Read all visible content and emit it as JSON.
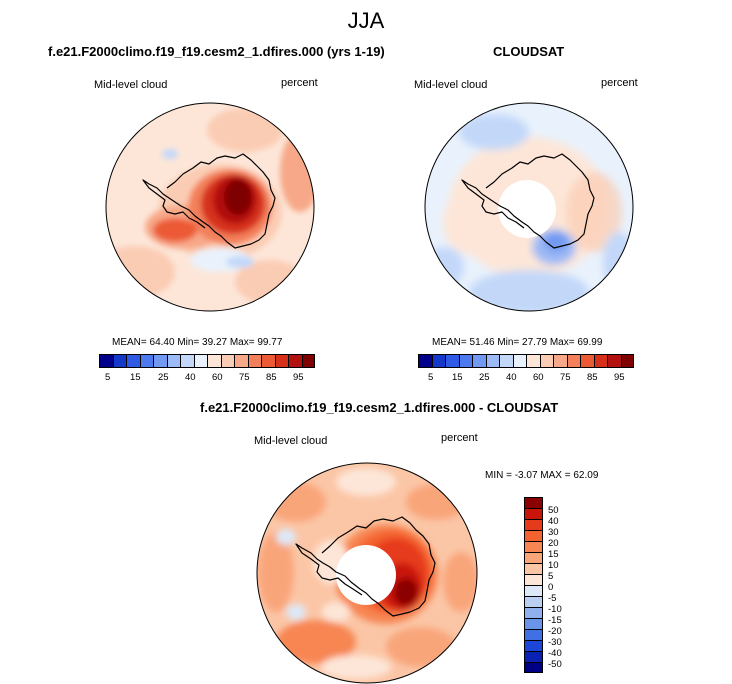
{
  "figure": {
    "title": "JJA",
    "panels": [
      {
        "id": "model",
        "title": "f.e21.F2000climo.f19_f19.cesm2_1.dfires.000 (yrs 1-19)",
        "left_label": "Mid-level cloud",
        "right_label": "percent",
        "stats": "MEAN= 64.40  Min= 39.27  Max= 99.77",
        "map": "Antarctica polar stereographic view"
      },
      {
        "id": "obs",
        "title": "CLOUDSAT",
        "left_label": "Mid-level cloud",
        "right_label": "percent",
        "stats": "MEAN= 51.46  Min= 27.79  Max= 69.99",
        "map": "Antarctica polar stereographic view"
      },
      {
        "id": "diff",
        "title": "f.e21.F2000climo.f19_f19.cesm2_1.dfires.000 - CLOUDSAT",
        "left_label": "Mid-level cloud",
        "right_label": "percent",
        "stats": "MIN = -3.07 MAX = 62.09",
        "map": "Antarctica polar stereographic view"
      }
    ]
  },
  "colorbars": {
    "abs": {
      "colors": [
        "#00008b",
        "#1438c8",
        "#2e5ae6",
        "#4c7aee",
        "#7299f2",
        "#9cbaf5",
        "#c3d8f9",
        "#e9f2fc",
        "#fde6d8",
        "#fbccb4",
        "#f7a888",
        "#f3805a",
        "#ec5a35",
        "#d6301b",
        "#b31010",
        "#7f0000"
      ],
      "labels": [
        "5",
        "15",
        "25",
        "40",
        "60",
        "75",
        "85",
        "95"
      ]
    },
    "diff": {
      "colors": [
        "#8b0000",
        "#c8140a",
        "#e63a1c",
        "#f4632f",
        "#f78652",
        "#f9a57a",
        "#fbc6a6",
        "#fde6d8",
        "#dde9f8",
        "#b9d0f3",
        "#8fb2ee",
        "#6a93ea",
        "#4070e4",
        "#1c46d8",
        "#0a22b4",
        "#000085"
      ],
      "labels": [
        "50",
        "40",
        "30",
        "20",
        "15",
        "10",
        "5",
        "0",
        "-5",
        "-10",
        "-15",
        "-20",
        "-30",
        "-40",
        "-50"
      ]
    }
  }
}
